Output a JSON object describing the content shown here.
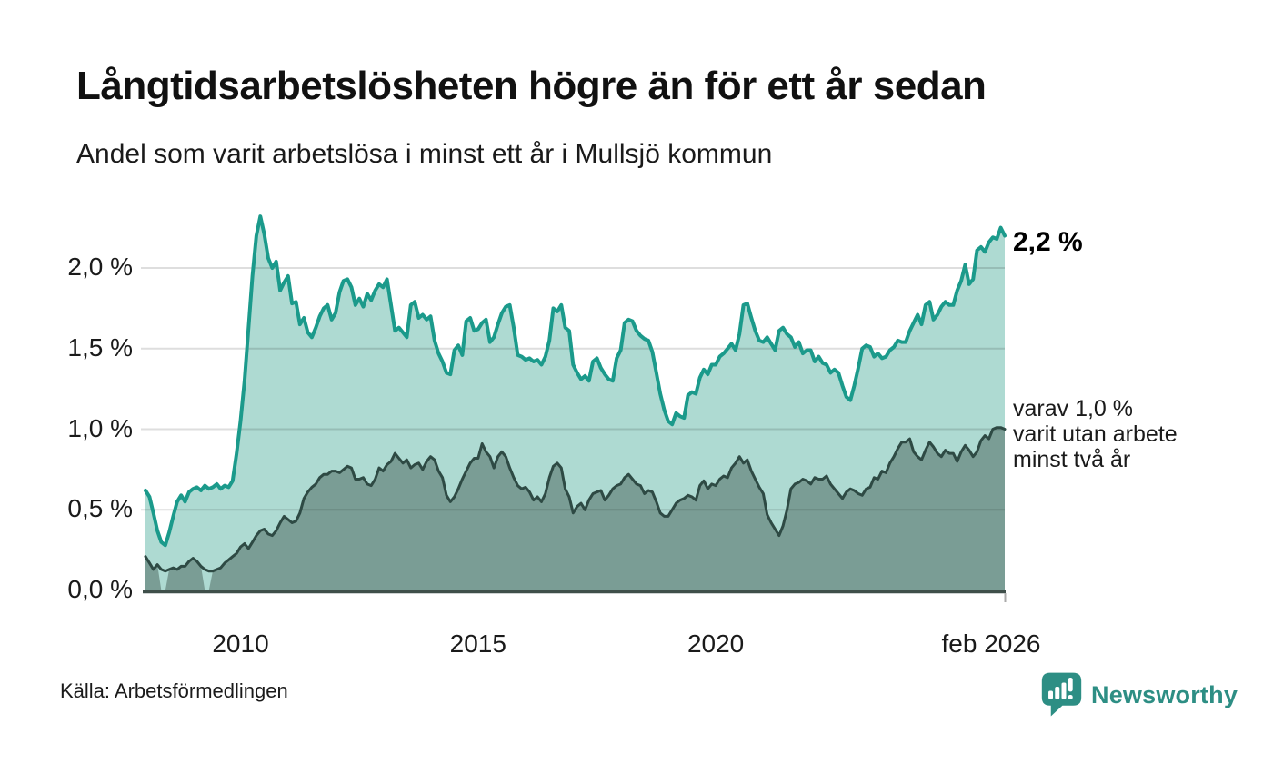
{
  "header": {
    "title": "Långtidsarbetslösheten högre än för ett år sedan",
    "subtitle": "Andel som varit arbetslösa i minst ett år i Mullsjö kommun"
  },
  "annotations": {
    "total_end_label": "2,2 %",
    "two_year_end_label": "varav 1,0 %\nvarit utan arbete\nminst två år"
  },
  "footer": {
    "source": "Källa: Arbetsförmedlingen",
    "brand": "Newsworthy"
  },
  "colors": {
    "total_line": "#1b9a8b",
    "total_fill": "#aedad2",
    "two_year_line": "#2e4a44",
    "two_year_fill": "#7a9d95",
    "gridline": "rgba(0,0,0,0.13)",
    "axis": "#3f4f4a",
    "brand_teal": "#2d8e84",
    "text": "#1a1a1a"
  },
  "chart_data": {
    "type": "area",
    "interval": "monthly",
    "x_start": "jan 2008",
    "x_end": "feb 2026",
    "ylim": [
      0,
      2.4
    ],
    "grid": "horizontal",
    "y_ticks": [
      {
        "label": "0,0 %",
        "value": 0
      },
      {
        "label": "0,5 %",
        "value": 0.5
      },
      {
        "label": "1,0 %",
        "value": 1
      },
      {
        "label": "1,5 %",
        "value": 1.5
      },
      {
        "label": "2,0 %",
        "value": 2
      }
    ],
    "x_ticks": [
      {
        "label": "2010",
        "month": 24
      },
      {
        "label": "2015",
        "month": 84
      },
      {
        "label": "2020",
        "month": 144
      },
      {
        "label": "feb 2026",
        "month": 217
      }
    ],
    "series": [
      {
        "name": "Arbetslösa minst ett år",
        "line_color": "#1b9a8b",
        "fill_color": "#aedad2",
        "end_value": 2.2,
        "values": [
          0.62,
          0.58,
          0.48,
          0.37,
          0.3,
          0.28,
          0.36,
          0.46,
          0.55,
          0.59,
          0.55,
          0.61,
          0.63,
          0.64,
          0.62,
          0.65,
          0.63,
          0.64,
          0.66,
          0.63,
          0.65,
          0.64,
          0.68,
          0.85,
          1.05,
          1.3,
          1.62,
          1.95,
          2.2,
          2.32,
          2.21,
          2.06,
          2.0,
          2.04,
          1.86,
          1.91,
          1.95,
          1.78,
          1.79,
          1.65,
          1.69,
          1.6,
          1.57,
          1.63,
          1.7,
          1.75,
          1.77,
          1.68,
          1.72,
          1.85,
          1.92,
          1.93,
          1.88,
          1.77,
          1.81,
          1.76,
          1.84,
          1.8,
          1.86,
          1.9,
          1.88,
          1.93,
          1.77,
          1.61,
          1.63,
          1.6,
          1.57,
          1.77,
          1.79,
          1.69,
          1.71,
          1.68,
          1.7,
          1.55,
          1.47,
          1.42,
          1.35,
          1.34,
          1.49,
          1.52,
          1.46,
          1.67,
          1.69,
          1.61,
          1.62,
          1.66,
          1.68,
          1.54,
          1.57,
          1.65,
          1.72,
          1.76,
          1.77,
          1.63,
          1.46,
          1.45,
          1.43,
          1.44,
          1.42,
          1.43,
          1.4,
          1.45,
          1.55,
          1.75,
          1.73,
          1.77,
          1.63,
          1.61,
          1.4,
          1.35,
          1.31,
          1.33,
          1.3,
          1.42,
          1.44,
          1.38,
          1.34,
          1.31,
          1.3,
          1.44,
          1.49,
          1.66,
          1.68,
          1.67,
          1.61,
          1.58,
          1.56,
          1.55,
          1.48,
          1.35,
          1.22,
          1.12,
          1.05,
          1.03,
          1.1,
          1.08,
          1.07,
          1.21,
          1.23,
          1.22,
          1.32,
          1.37,
          1.34,
          1.4,
          1.4,
          1.45,
          1.47,
          1.5,
          1.53,
          1.49,
          1.59,
          1.77,
          1.78,
          1.69,
          1.61,
          1.55,
          1.54,
          1.57,
          1.53,
          1.49,
          1.61,
          1.63,
          1.59,
          1.57,
          1.51,
          1.54,
          1.47,
          1.49,
          1.49,
          1.42,
          1.45,
          1.41,
          1.4,
          1.35,
          1.37,
          1.35,
          1.27,
          1.2,
          1.18,
          1.27,
          1.38,
          1.5,
          1.52,
          1.51,
          1.45,
          1.47,
          1.44,
          1.45,
          1.49,
          1.51,
          1.55,
          1.54,
          1.54,
          1.61,
          1.66,
          1.71,
          1.65,
          1.77,
          1.79,
          1.68,
          1.71,
          1.76,
          1.79,
          1.77,
          1.77,
          1.86,
          1.92,
          2.02,
          1.9,
          1.93,
          2.11,
          2.13,
          2.1,
          2.16,
          2.19,
          2.18,
          2.25,
          2.2
        ]
      },
      {
        "name": "Varav utan arbete minst två år",
        "line_color": "#2e4a44",
        "fill_color": "#7a9d95",
        "end_value": 1.0,
        "fill_zero_months": [
          4,
          5,
          15,
          16
        ],
        "values": [
          0.21,
          0.17,
          0.13,
          0.16,
          0.13,
          0.12,
          0.13,
          0.14,
          0.13,
          0.15,
          0.15,
          0.18,
          0.2,
          0.18,
          0.15,
          0.13,
          0.12,
          0.12,
          0.13,
          0.14,
          0.17,
          0.19,
          0.21,
          0.23,
          0.27,
          0.29,
          0.26,
          0.3,
          0.34,
          0.37,
          0.38,
          0.35,
          0.34,
          0.37,
          0.42,
          0.46,
          0.44,
          0.42,
          0.43,
          0.48,
          0.57,
          0.61,
          0.64,
          0.66,
          0.7,
          0.72,
          0.72,
          0.74,
          0.74,
          0.73,
          0.75,
          0.77,
          0.76,
          0.69,
          0.69,
          0.7,
          0.66,
          0.65,
          0.69,
          0.76,
          0.74,
          0.78,
          0.8,
          0.85,
          0.82,
          0.79,
          0.81,
          0.76,
          0.78,
          0.79,
          0.75,
          0.8,
          0.83,
          0.81,
          0.74,
          0.7,
          0.59,
          0.55,
          0.58,
          0.63,
          0.69,
          0.74,
          0.79,
          0.82,
          0.82,
          0.91,
          0.86,
          0.83,
          0.76,
          0.83,
          0.86,
          0.83,
          0.76,
          0.7,
          0.65,
          0.63,
          0.64,
          0.61,
          0.56,
          0.58,
          0.55,
          0.6,
          0.7,
          0.77,
          0.79,
          0.76,
          0.63,
          0.58,
          0.48,
          0.52,
          0.54,
          0.5,
          0.56,
          0.6,
          0.61,
          0.62,
          0.56,
          0.59,
          0.63,
          0.65,
          0.66,
          0.7,
          0.72,
          0.69,
          0.66,
          0.65,
          0.6,
          0.62,
          0.61,
          0.55,
          0.48,
          0.46,
          0.46,
          0.5,
          0.54,
          0.56,
          0.57,
          0.59,
          0.58,
          0.56,
          0.65,
          0.68,
          0.63,
          0.66,
          0.65,
          0.69,
          0.71,
          0.7,
          0.76,
          0.79,
          0.83,
          0.79,
          0.81,
          0.74,
          0.69,
          0.64,
          0.6,
          0.47,
          0.42,
          0.38,
          0.34,
          0.4,
          0.5,
          0.63,
          0.66,
          0.67,
          0.69,
          0.68,
          0.66,
          0.7,
          0.69,
          0.69,
          0.71,
          0.66,
          0.63,
          0.6,
          0.57,
          0.61,
          0.63,
          0.62,
          0.6,
          0.59,
          0.63,
          0.64,
          0.7,
          0.69,
          0.74,
          0.73,
          0.79,
          0.83,
          0.88,
          0.92,
          0.92,
          0.94,
          0.86,
          0.83,
          0.81,
          0.87,
          0.92,
          0.89,
          0.85,
          0.83,
          0.87,
          0.85,
          0.85,
          0.8,
          0.86,
          0.9,
          0.87,
          0.83,
          0.86,
          0.93,
          0.96,
          0.94,
          1.0,
          1.01,
          1.01,
          1.0
        ]
      }
    ]
  }
}
